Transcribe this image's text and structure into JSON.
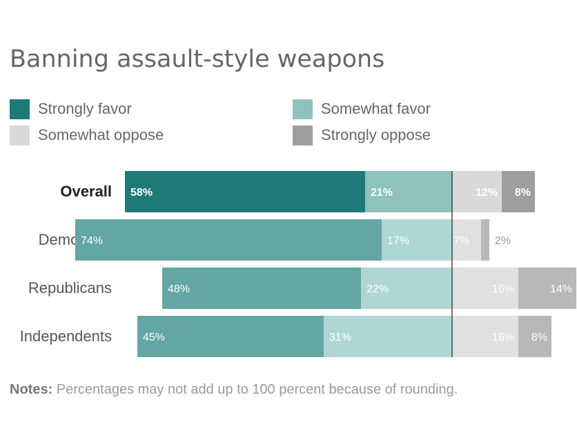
{
  "title": "Banning assault-style weapons",
  "legend": [
    {
      "label": "Strongly favor",
      "color": "#1f7a77"
    },
    {
      "label": "Somewhat favor",
      "color": "#8fc2bd"
    },
    {
      "label": "Somewhat oppose",
      "color": "#d9d9d9"
    },
    {
      "label": "Strongly oppose",
      "color": "#9e9e9e"
    }
  ],
  "notes": {
    "label": "Notes:",
    "text": " Percentages may not add up to 100 percent because of rounding."
  },
  "chart_data": {
    "type": "bar",
    "orientation": "horizontal",
    "stacking": "diverging",
    "categories": [
      "Overall",
      "Democrats",
      "Republicans",
      "Independents"
    ],
    "series": [
      {
        "name": "Strongly favor",
        "values": [
          58,
          74,
          48,
          45
        ],
        "side": "favor"
      },
      {
        "name": "Somewhat favor",
        "values": [
          21,
          17,
          22,
          31
        ],
        "side": "favor"
      },
      {
        "name": "Somewhat oppose",
        "values": [
          12,
          7,
          16,
          16
        ],
        "side": "oppose"
      },
      {
        "name": "Strongly oppose",
        "values": [
          8,
          2,
          14,
          8
        ],
        "side": "oppose"
      }
    ],
    "value_labels": [
      [
        "58%",
        "21%",
        "12%",
        "8%"
      ],
      [
        "74%",
        "17%",
        "7%",
        "2%"
      ],
      [
        "48%",
        "22%",
        "16%",
        "14%"
      ],
      [
        "45%",
        "31%",
        "16%",
        "8%"
      ]
    ],
    "row_colors": {
      "highlight": [
        "#1f7a77",
        "#8fc2bd",
        "#d9d9d9",
        "#9e9e9e"
      ],
      "normal": [
        "#63a6a3",
        "#b0d6d3",
        "#e0e0e0",
        "#b8b8b8"
      ]
    },
    "highlight_row": "Overall",
    "legend_position": "top"
  }
}
